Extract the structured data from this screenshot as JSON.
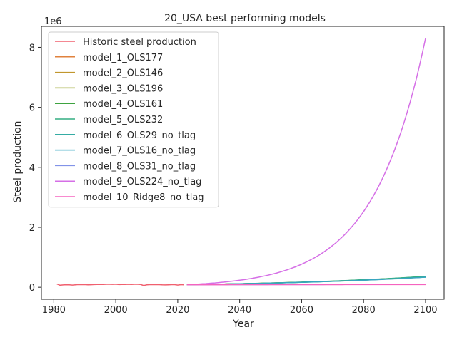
{
  "chart_data": {
    "type": "line",
    "title": "20_USA best performing models",
    "xlabel": "Year",
    "ylabel": "Steel production",
    "y_offset_label": "1e6",
    "xlim": [
      1976,
      2106
    ],
    "ylim": [
      -400000,
      8700000
    ],
    "y_scale_factor": 1000000,
    "x_ticks": [
      1980,
      2000,
      2020,
      2040,
      2060,
      2080,
      2100
    ],
    "y_ticks": [
      0,
      2,
      4,
      6,
      8
    ],
    "grid": false,
    "legend_position": "top-left",
    "historic": {
      "name": "Historic steel production",
      "color": "#f0606f",
      "x": [
        1981,
        1982,
        1983,
        1984,
        1985,
        1986,
        1987,
        1988,
        1989,
        1990,
        1991,
        1992,
        1993,
        1994,
        1995,
        1996,
        1997,
        1998,
        1999,
        2000,
        2001,
        2002,
        2003,
        2004,
        2005,
        2006,
        2007,
        2008,
        2009,
        2010,
        2011,
        2012,
        2013,
        2014,
        2015,
        2016,
        2017,
        2018,
        2019,
        2020,
        2021,
        2022
      ],
      "y": [
        109000,
        68000,
        77000,
        84000,
        80000,
        74000,
        81000,
        90000,
        88000,
        90000,
        80000,
        84000,
        89000,
        91000,
        95000,
        95000,
        98000,
        98000,
        97000,
        102000,
        90000,
        92000,
        94000,
        100000,
        95000,
        98000,
        98000,
        91000,
        59000,
        81000,
        86000,
        89000,
        87000,
        88000,
        79000,
        78000,
        82000,
        87000,
        88000,
        73000,
        86000,
        81000
      ]
    },
    "forecast_x_start": 2023,
    "forecast_x_end": 2100,
    "forecast_y_start": 85000,
    "series": [
      {
        "name": "model_1_OLS177",
        "color": "#e0823d",
        "y_end": 350000
      },
      {
        "name": "model_2_OLS146",
        "color": "#c1972e",
        "y_end": 355000
      },
      {
        "name": "model_3_OLS196",
        "color": "#9da631",
        "y_end": 345000
      },
      {
        "name": "model_4_OLS161",
        "color": "#3ea340",
        "y_end": 360000
      },
      {
        "name": "model_5_OLS232",
        "color": "#33ae82",
        "y_end": 365000
      },
      {
        "name": "model_6_OLS29_no_tlag",
        "color": "#35aca4",
        "y_end": 340000
      },
      {
        "name": "model_7_OLS16_no_tlag",
        "color": "#39a6c0",
        "y_end": 335000
      },
      {
        "name": "model_8_OLS31_no_tlag",
        "color": "#8293e8",
        "y_end": 95000
      },
      {
        "name": "model_9_OLS224_no_tlag",
        "color": "#d56fe6",
        "y_end": 8300000
      },
      {
        "name": "model_10_Ridge8_no_tlag",
        "color": "#f563bf",
        "y_end": 90000
      }
    ]
  }
}
